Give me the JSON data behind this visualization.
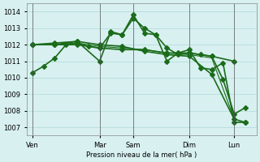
{
  "background_color": "#d8f0f0",
  "grid_color": "#b0d8d8",
  "line_color": "#1a6b1a",
  "ylabel": "Pression niveau de la mer( hPa )",
  "ylim": [
    1006.5,
    1014.5
  ],
  "yticks": [
    1007,
    1008,
    1009,
    1010,
    1011,
    1012,
    1013,
    1014
  ],
  "day_labels": [
    "Ven",
    "Mar",
    "Sam",
    "Dim",
    "Lun"
  ],
  "day_positions": [
    0,
    12,
    18,
    28,
    36
  ],
  "vline_positions": [
    0,
    12,
    18,
    28,
    36
  ],
  "series": [
    {
      "x": [
        0,
        2,
        4,
        6,
        8,
        10,
        12,
        14,
        16,
        18,
        20,
        22,
        24,
        26,
        28,
        30,
        32,
        34,
        36,
        38
      ],
      "y": [
        1010.3,
        1010.7,
        1011.2,
        1012.0,
        1012.1,
        1011.9,
        1011.8,
        1012.7,
        1012.6,
        1013.6,
        1013.0,
        1012.6,
        1011.0,
        1011.5,
        1011.7,
        1010.6,
        1010.5,
        1010.9,
        1007.3,
        1007.3
      ],
      "marker": "D",
      "markersize": 3,
      "linewidth": 1.2
    },
    {
      "x": [
        0,
        4,
        8,
        12,
        16,
        20,
        24,
        28,
        32,
        36
      ],
      "y": [
        1012.0,
        1012.0,
        1012.0,
        1011.8,
        1011.7,
        1011.7,
        1011.5,
        1011.5,
        1011.3,
        1011.0
      ],
      "marker": "D",
      "markersize": 3,
      "linewidth": 1.2
    },
    {
      "x": [
        0,
        4,
        8,
        12,
        16,
        20,
        24,
        28,
        32,
        36,
        38
      ],
      "y": [
        1012.0,
        1012.1,
        1012.2,
        1012.0,
        1011.9,
        1011.6,
        1011.4,
        1011.3,
        1010.2,
        1007.5,
        1007.3
      ],
      "marker": "D",
      "markersize": 3,
      "linewidth": 1.2
    },
    {
      "x": [
        0,
        4,
        8,
        12,
        14,
        16,
        18,
        20,
        22,
        24,
        26,
        28,
        30,
        32,
        34,
        36,
        38
      ],
      "y": [
        1012.0,
        1012.0,
        1012.2,
        1011.0,
        1012.8,
        1012.6,
        1013.8,
        1012.7,
        1012.6,
        1011.8,
        1011.4,
        1011.5,
        1011.4,
        1011.3,
        1009.9,
        1007.8,
        1008.2
      ],
      "marker": "D",
      "markersize": 3,
      "linewidth": 1.2
    },
    {
      "x": [
        0,
        4,
        8,
        12,
        16,
        20,
        24,
        28,
        32,
        36
      ],
      "y": [
        1012.0,
        1012.0,
        1012.1,
        1011.9,
        1011.8,
        1011.7,
        1011.5,
        1011.4,
        1011.2,
        1007.5
      ],
      "marker": null,
      "markersize": 0,
      "linewidth": 0.8
    }
  ]
}
